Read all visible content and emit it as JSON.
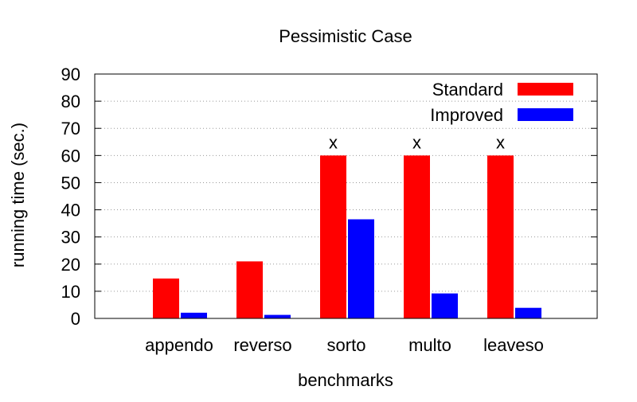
{
  "chart_data": {
    "type": "bar",
    "title": "Pessimistic Case",
    "xlabel": "benchmarks",
    "ylabel": "running time (sec.)",
    "ylim": [
      0,
      90
    ],
    "yticks": [
      0,
      10,
      20,
      30,
      40,
      50,
      60,
      70,
      80,
      90
    ],
    "grid": true,
    "legend_position": "top-right",
    "categories": [
      "appendo",
      "reverso",
      "sorto",
      "multo",
      "leaveso"
    ],
    "series": [
      {
        "name": "Standard",
        "color": "#ff0000",
        "values": [
          14.7,
          21,
          60,
          60,
          60
        ]
      },
      {
        "name": "Improved",
        "color": "#0000ff",
        "values": [
          2.1,
          1.3,
          36.5,
          9.2,
          3.9
        ]
      }
    ],
    "annotations": [
      {
        "category": "sorto",
        "text": "x"
      },
      {
        "category": "multo",
        "text": "x"
      },
      {
        "category": "leaveso",
        "text": "x"
      }
    ]
  }
}
